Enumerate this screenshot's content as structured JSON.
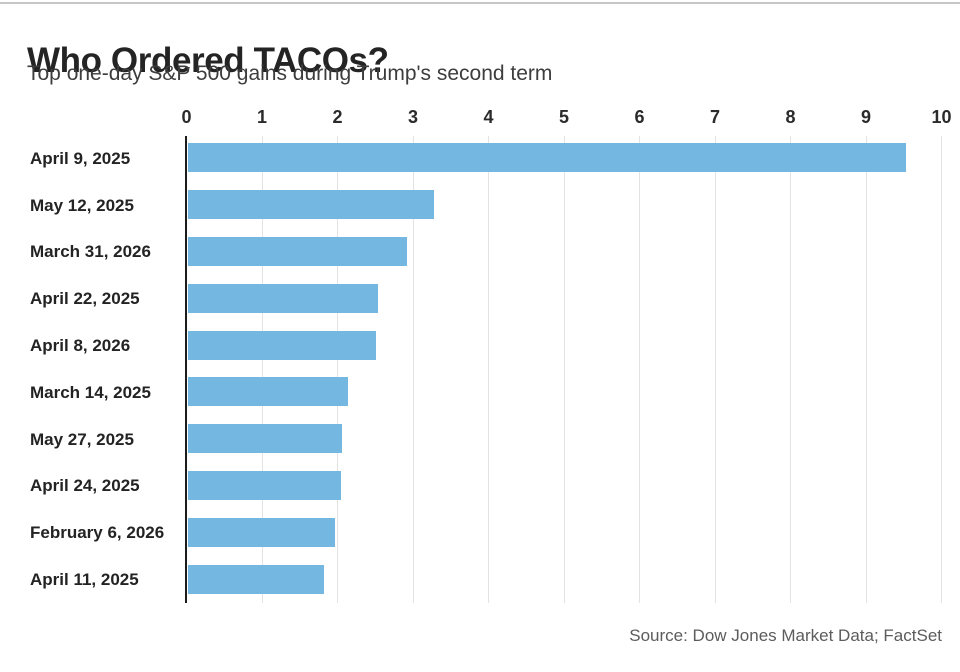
{
  "page": {
    "title": "Who Ordered TACOs?",
    "subtitle": "Top one-day S&P 500 gains during Trump's second term",
    "source": "Source: Dow Jones Market Data; FactSet"
  },
  "chart_data": {
    "type": "bar",
    "orientation": "horizontal",
    "title": "Who Ordered TACOs?",
    "subtitle": "Top one-day S&P 500 gains during Trump's second term",
    "categories": [
      "April 9, 2025",
      "May 12, 2025",
      "March 31, 2026",
      "April 22, 2025",
      "April 8, 2026",
      "March 14, 2025",
      "May 27, 2025",
      "April 24, 2025",
      "February 6, 2026",
      "April 11, 2025"
    ],
    "values": [
      9.52,
      3.26,
      2.91,
      2.52,
      2.5,
      2.12,
      2.05,
      2.03,
      1.96,
      1.81
    ],
    "value_unit": "% one-day gain",
    "xlim": [
      0,
      10
    ],
    "x_ticks": [
      0,
      1,
      2,
      3,
      4,
      5,
      6,
      7,
      8,
      9,
      10
    ],
    "grid": true,
    "legend": "none",
    "xlabel": "",
    "ylabel": "",
    "colors": {
      "bar": "#74b7e1",
      "axis_line": "#1c1c1c",
      "gridline": "#e3e3e3",
      "tick_text": "#2b2b2b",
      "label_text": "#232323",
      "source_text": "#5c5c5c"
    }
  }
}
